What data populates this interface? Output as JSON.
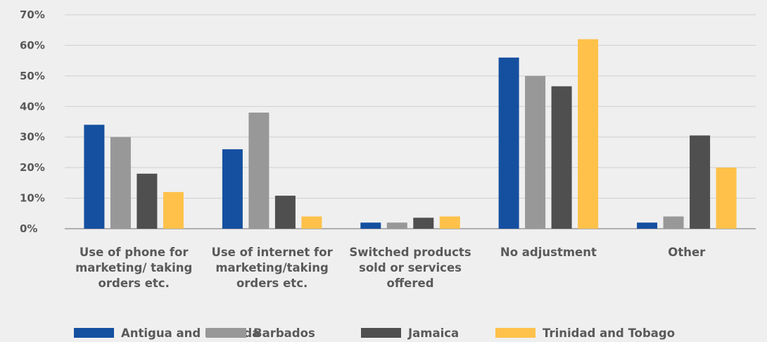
{
  "chart_data": {
    "type": "bar",
    "title": "",
    "xlabel": "",
    "ylabel": "",
    "ylim": [
      0,
      70
    ],
    "yticks": [
      "0%",
      "10%",
      "20%",
      "30%",
      "40%",
      "50%",
      "60%",
      "70%"
    ],
    "grid": true,
    "legend_position": "bottom",
    "categories": [
      [
        "Use of phone for",
        "marketing/ taking",
        "orders etc."
      ],
      [
        "Use of internet for",
        "marketing/taking",
        "orders etc."
      ],
      [
        "Switched products",
        "sold or services",
        "offered"
      ],
      [
        "No adjustment"
      ],
      [
        "Other"
      ]
    ],
    "series": [
      {
        "name": "Antigua and Barbuda",
        "color": "#1550a0",
        "values": [
          34,
          26,
          2,
          56,
          2
        ]
      },
      {
        "name": "Barbados",
        "color": "#989898",
        "values": [
          30,
          38,
          2,
          50,
          4
        ]
      },
      {
        "name": "Jamaica",
        "color": "#4f4f4f",
        "values": [
          18,
          10.8,
          3.6,
          46.6,
          30.5
        ]
      },
      {
        "name": "Trinidad and Tobago",
        "color": "#ffc14a",
        "values": [
          12,
          4,
          4,
          62,
          20
        ]
      }
    ]
  }
}
